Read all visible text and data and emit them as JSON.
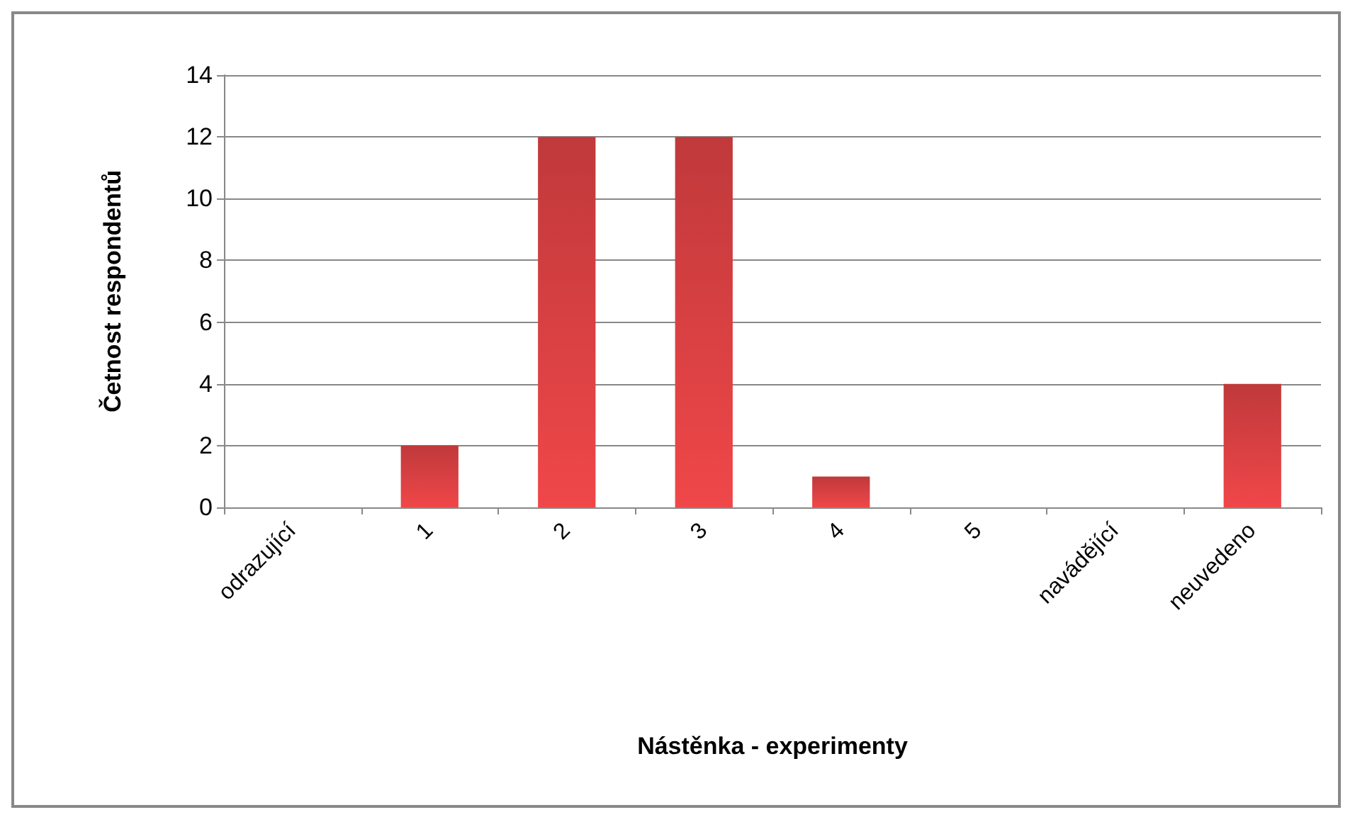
{
  "chart_data": {
    "type": "bar",
    "xlabel": "Nástěnka - experimenty",
    "ylabel": "Četnost respondentů",
    "categories": [
      "odrazující",
      "1",
      "2",
      "3",
      "4",
      "5",
      "navádějící",
      "neuvedeno"
    ],
    "values": [
      0,
      2,
      12,
      12,
      1,
      0,
      0,
      4
    ],
    "color": "#c0393b",
    "ylim": [
      0,
      14
    ],
    "yticks": [
      0,
      2,
      4,
      6,
      8,
      10,
      12,
      14
    ],
    "grid": "y"
  }
}
